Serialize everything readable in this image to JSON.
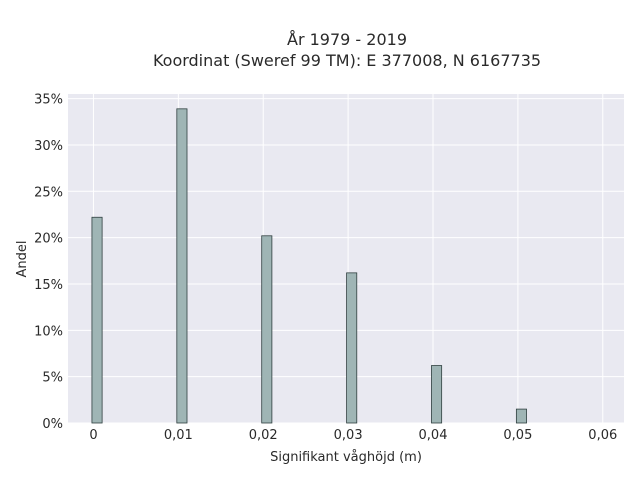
{
  "chart_data": {
    "type": "bar",
    "title": "År 1979 - 2019",
    "subtitle": "Koordinat (Sweref 99 TM): E 377008, N 6167735",
    "xlabel": "Signifikant våghöjd (m)",
    "ylabel": "Andel",
    "x": [
      0,
      0.01,
      0.02,
      0.03,
      0.04,
      0.05
    ],
    "values": [
      22.2,
      33.9,
      20.2,
      16.2,
      6.2,
      1.5
    ],
    "xlim": [
      -0.003,
      0.0625
    ],
    "ylim": [
      0,
      35.5
    ],
    "x_ticks": [
      0,
      0.01,
      0.02,
      0.03,
      0.04,
      0.05,
      0.06
    ],
    "x_tick_labels": [
      "0",
      "0,01",
      "0,02",
      "0,03",
      "0,04",
      "0,05",
      "0,06"
    ],
    "y_ticks": [
      0,
      5,
      10,
      15,
      20,
      25,
      30,
      35
    ],
    "y_tick_labels": [
      "0%",
      "5%",
      "10%",
      "15%",
      "20%",
      "25%",
      "30%",
      "35%"
    ],
    "grid": true,
    "colors": {
      "bar_fill": "#9fb5b5",
      "bar_edge": "#2f3f3f",
      "plot_background": "#e9e9f1"
    }
  }
}
